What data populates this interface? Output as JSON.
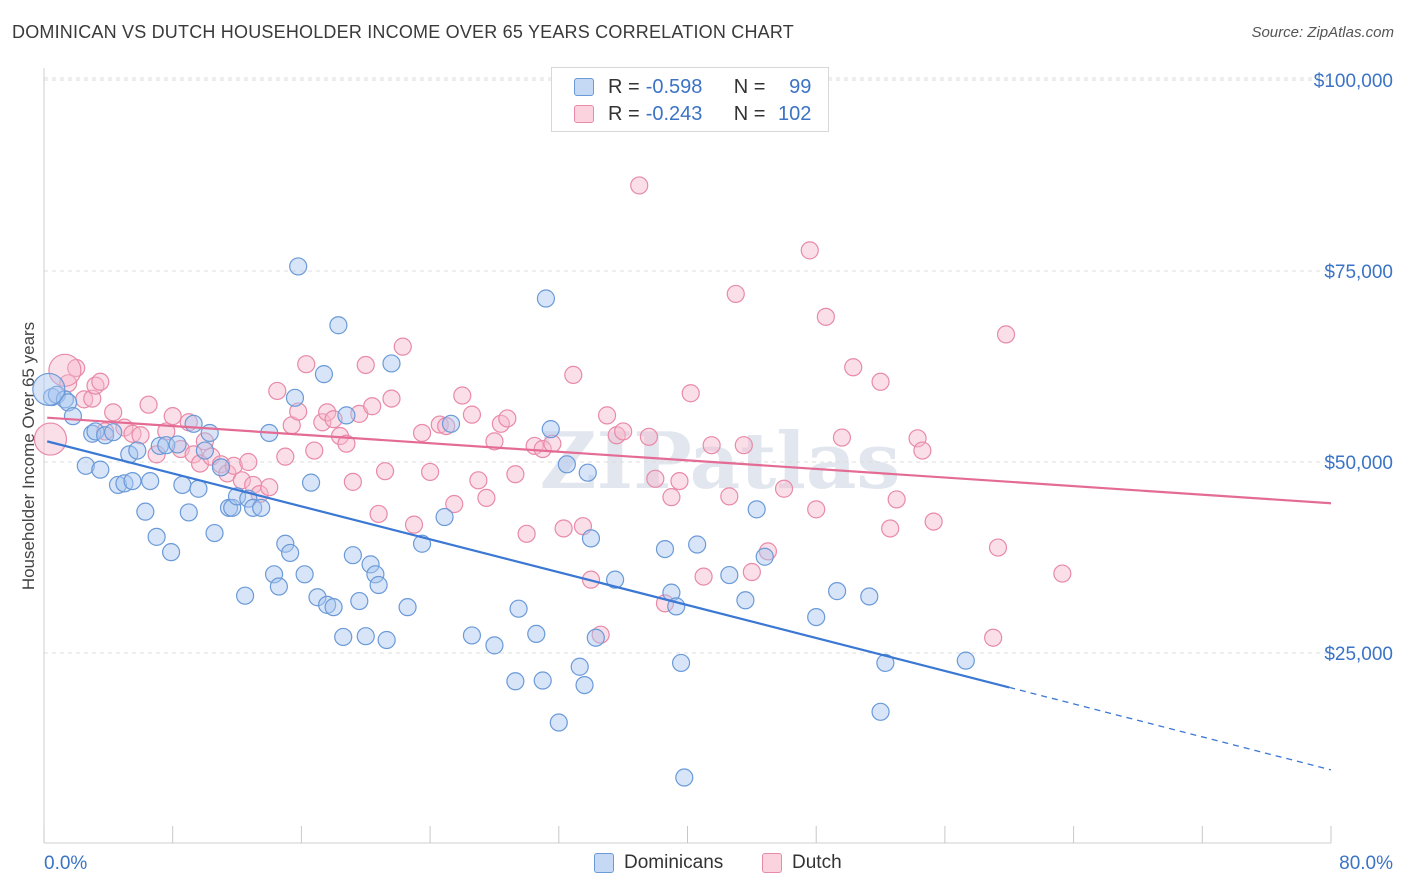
{
  "title": "DOMINICAN VS DUTCH HOUSEHOLDER INCOME OVER 65 YEARS CORRELATION CHART",
  "source": "Source: ZipAtlas.com",
  "watermark": "ZIPatlas",
  "legend": {
    "rows": [
      {
        "r_label": "R =",
        "r_value": "-0.598",
        "n_label": "N =",
        "n_value": "99",
        "color": "#a9c6ef"
      },
      {
        "r_label": "R =",
        "r_value": "-0.243",
        "n_label": "N =",
        "n_value": "102",
        "color": "#f6b9cb"
      }
    ]
  },
  "bottom_legend": [
    {
      "label": "Dominicans",
      "color": "#a9c6ef"
    },
    {
      "label": "Dutch",
      "color": "#f6b9cb"
    }
  ],
  "chart_data": {
    "type": "scatter",
    "ylabel": "Householder Income Over 65 years",
    "xlabel": "",
    "xlim": [
      0,
      80
    ],
    "ylim": [
      0,
      105000
    ],
    "x_tick_labels": [
      "0.0%",
      "80.0%"
    ],
    "y_ticks": [
      25000,
      50000,
      75000,
      100000
    ],
    "y_tick_labels": [
      "$25,000",
      "$50,000",
      "$75,000",
      "$100,000"
    ],
    "grid": true,
    "legend_position": "top-center",
    "colors": {
      "blue_fill": "#a9c6ef",
      "blue_stroke": "#6a9ad8",
      "blue_line": "#3a78d4",
      "pink_fill": "#f6b9cb",
      "pink_stroke": "#e88aa8",
      "pink_line": "#e46b94",
      "tick_text": "#3b73c5"
    },
    "series": [
      {
        "name": "Dominicans",
        "trend": {
          "x1": 0.2,
          "y1": 52700,
          "x2": 60,
          "y2": 20500,
          "dash_to_x": 80,
          "dash_to_y": 9700
        },
        "points": [
          [
            0.5,
            58500
          ],
          [
            0.8,
            58800
          ],
          [
            1.3,
            58200
          ],
          [
            1.5,
            57800
          ],
          [
            1.8,
            56000
          ],
          [
            2.6,
            49500
          ],
          [
            3.0,
            53700
          ],
          [
            3.2,
            54000
          ],
          [
            3.5,
            49000
          ],
          [
            3.8,
            53500
          ],
          [
            4.3,
            53900
          ],
          [
            4.6,
            47000
          ],
          [
            5.0,
            47200
          ],
          [
            5.3,
            51000
          ],
          [
            5.5,
            47500
          ],
          [
            5.8,
            51500
          ],
          [
            6.3,
            43500
          ],
          [
            6.6,
            47500
          ],
          [
            7.0,
            40200
          ],
          [
            7.2,
            52100
          ],
          [
            7.6,
            52200
          ],
          [
            7.9,
            38200
          ],
          [
            8.3,
            52300
          ],
          [
            8.6,
            47000
          ],
          [
            9.0,
            43400
          ],
          [
            9.3,
            55000
          ],
          [
            9.6,
            46500
          ],
          [
            10.0,
            51500
          ],
          [
            10.3,
            53800
          ],
          [
            10.6,
            40700
          ],
          [
            11.0,
            49300
          ],
          [
            11.5,
            44000
          ],
          [
            11.7,
            44000
          ],
          [
            12.0,
            45500
          ],
          [
            12.5,
            32500
          ],
          [
            12.7,
            45200
          ],
          [
            13.0,
            44000
          ],
          [
            13.5,
            44000
          ],
          [
            14.0,
            53800
          ],
          [
            14.3,
            35300
          ],
          [
            14.6,
            33700
          ],
          [
            15.0,
            39300
          ],
          [
            15.3,
            38100
          ],
          [
            15.6,
            58400
          ],
          [
            15.8,
            75600
          ],
          [
            16.2,
            35300
          ],
          [
            16.6,
            47300
          ],
          [
            17.0,
            32300
          ],
          [
            17.4,
            61500
          ],
          [
            17.6,
            31300
          ],
          [
            18.0,
            31000
          ],
          [
            18.3,
            67900
          ],
          [
            18.6,
            27100
          ],
          [
            18.8,
            56100
          ],
          [
            19.2,
            37800
          ],
          [
            19.6,
            31800
          ],
          [
            20.0,
            27200
          ],
          [
            20.3,
            36600
          ],
          [
            20.6,
            35300
          ],
          [
            20.8,
            33900
          ],
          [
            21.3,
            26700
          ],
          [
            21.6,
            62900
          ],
          [
            22.6,
            31000
          ],
          [
            23.5,
            39300
          ],
          [
            24.9,
            42800
          ],
          [
            25.3,
            55000
          ],
          [
            26.6,
            27300
          ],
          [
            28.0,
            26000
          ],
          [
            29.3,
            21300
          ],
          [
            29.5,
            30800
          ],
          [
            30.6,
            27500
          ],
          [
            31.0,
            21400
          ],
          [
            31.2,
            71400
          ],
          [
            31.5,
            54300
          ],
          [
            32.0,
            15900
          ],
          [
            32.5,
            49700
          ],
          [
            33.3,
            23200
          ],
          [
            33.6,
            20800
          ],
          [
            33.8,
            48600
          ],
          [
            34.0,
            40000
          ],
          [
            34.3,
            27000
          ],
          [
            35.5,
            34600
          ],
          [
            38.6,
            38600
          ],
          [
            39.0,
            32900
          ],
          [
            39.3,
            31100
          ],
          [
            39.6,
            23700
          ],
          [
            39.8,
            8700
          ],
          [
            40.6,
            39200
          ],
          [
            42.6,
            35200
          ],
          [
            43.6,
            31900
          ],
          [
            44.3,
            43800
          ],
          [
            44.8,
            37600
          ],
          [
            48.0,
            29700
          ],
          [
            49.3,
            33100
          ],
          [
            51.3,
            32400
          ],
          [
            52.0,
            17300
          ],
          [
            52.3,
            23700
          ],
          [
            57.3,
            24000
          ]
        ],
        "large_points": [
          [
            0.3,
            59500
          ]
        ]
      },
      {
        "name": "Dutch",
        "trend": {
          "x1": 0.2,
          "y1": 55800,
          "x2": 80,
          "y2": 44600
        },
        "points": [
          [
            1.5,
            60300
          ],
          [
            2.0,
            62300
          ],
          [
            2.5,
            58200
          ],
          [
            3.0,
            58300
          ],
          [
            3.2,
            60000
          ],
          [
            3.5,
            60500
          ],
          [
            3.8,
            54000
          ],
          [
            4.3,
            56500
          ],
          [
            5.0,
            54500
          ],
          [
            5.5,
            53700
          ],
          [
            6.0,
            53500
          ],
          [
            6.5,
            57500
          ],
          [
            7.0,
            51000
          ],
          [
            7.6,
            54000
          ],
          [
            8.0,
            56000
          ],
          [
            8.5,
            51700
          ],
          [
            9.0,
            55200
          ],
          [
            9.3,
            51000
          ],
          [
            9.7,
            49800
          ],
          [
            10.0,
            52700
          ],
          [
            10.4,
            50700
          ],
          [
            11.0,
            49700
          ],
          [
            11.4,
            48500
          ],
          [
            11.8,
            49500
          ],
          [
            12.3,
            47600
          ],
          [
            12.7,
            50000
          ],
          [
            13.0,
            47000
          ],
          [
            13.4,
            45800
          ],
          [
            14.0,
            46700
          ],
          [
            14.5,
            59300
          ],
          [
            15.0,
            50700
          ],
          [
            15.4,
            54800
          ],
          [
            15.8,
            56600
          ],
          [
            16.3,
            62800
          ],
          [
            16.8,
            51500
          ],
          [
            17.3,
            55200
          ],
          [
            17.6,
            56500
          ],
          [
            18.0,
            55600
          ],
          [
            18.4,
            53400
          ],
          [
            18.8,
            52400
          ],
          [
            19.2,
            47400
          ],
          [
            19.6,
            56300
          ],
          [
            20.0,
            62700
          ],
          [
            20.4,
            57300
          ],
          [
            20.8,
            43200
          ],
          [
            21.2,
            48800
          ],
          [
            21.6,
            58300
          ],
          [
            22.3,
            65100
          ],
          [
            23.0,
            41800
          ],
          [
            23.5,
            53800
          ],
          [
            24.0,
            48700
          ],
          [
            24.6,
            54900
          ],
          [
            25.0,
            54700
          ],
          [
            25.5,
            44500
          ],
          [
            26.0,
            58700
          ],
          [
            26.6,
            56200
          ],
          [
            27.0,
            47600
          ],
          [
            27.5,
            45300
          ],
          [
            28.0,
            52700
          ],
          [
            28.4,
            55000
          ],
          [
            28.8,
            55700
          ],
          [
            29.3,
            48400
          ],
          [
            30.0,
            40600
          ],
          [
            30.5,
            52100
          ],
          [
            31.0,
            51700
          ],
          [
            31.6,
            52400
          ],
          [
            32.3,
            41300
          ],
          [
            32.9,
            61400
          ],
          [
            33.5,
            41600
          ],
          [
            34.0,
            34600
          ],
          [
            34.6,
            27400
          ],
          [
            35.0,
            56100
          ],
          [
            35.6,
            53500
          ],
          [
            36.0,
            54000
          ],
          [
            37.0,
            86200
          ],
          [
            37.6,
            53300
          ],
          [
            38.0,
            47800
          ],
          [
            38.6,
            31500
          ],
          [
            39.0,
            45400
          ],
          [
            39.5,
            47500
          ],
          [
            40.2,
            59000
          ],
          [
            41.0,
            35000
          ],
          [
            41.5,
            52200
          ],
          [
            42.6,
            45500
          ],
          [
            43.0,
            72000
          ],
          [
            43.5,
            52200
          ],
          [
            44.0,
            35600
          ],
          [
            45.0,
            38300
          ],
          [
            46.0,
            46500
          ],
          [
            47.6,
            77700
          ],
          [
            48.0,
            43800
          ],
          [
            48.6,
            69000
          ],
          [
            49.6,
            53200
          ],
          [
            50.3,
            62400
          ],
          [
            52.0,
            60500
          ],
          [
            52.6,
            41300
          ],
          [
            53.0,
            45100
          ],
          [
            54.3,
            53100
          ],
          [
            54.6,
            51500
          ],
          [
            55.3,
            42200
          ],
          [
            59.0,
            27000
          ],
          [
            59.3,
            38800
          ],
          [
            59.8,
            66700
          ],
          [
            63.3,
            35400
          ]
        ],
        "large_points": [
          [
            0.4,
            53000
          ],
          [
            1.3,
            62000
          ]
        ]
      }
    ]
  }
}
